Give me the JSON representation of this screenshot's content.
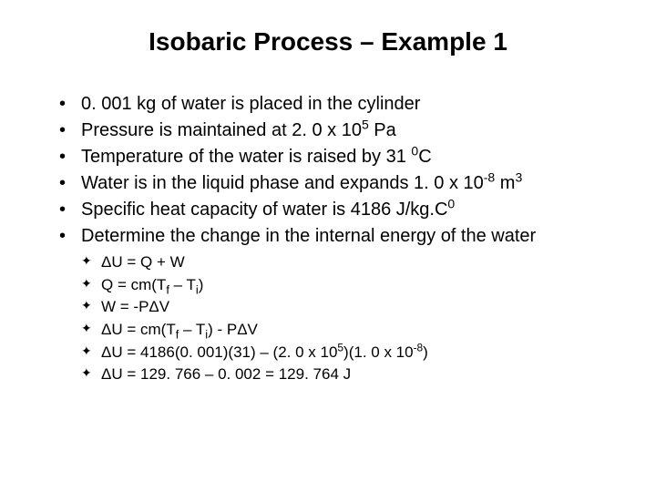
{
  "title": "Isobaric Process – Example 1",
  "bullets": [
    {
      "html": "0. 001 kg of water is placed in the cylinder"
    },
    {
      "html": "Pressure is maintained at 2. 0 x 10<sup>5</sup> Pa"
    },
    {
      "html": "Temperature of the water is raised by 31 <sup>0</sup>C"
    },
    {
      "html": "Water is in the liquid phase and expands 1. 0 x 10<sup>-8</sup> m<sup>3</sup>"
    },
    {
      "html": "Specific heat capacity of water is 4186 J/kg.C<sup>0</sup>"
    },
    {
      "html": "Determine the change in the internal energy of the water"
    }
  ],
  "subbullets": [
    {
      "html": "ΔU = Q + W"
    },
    {
      "html": "Q = cm(T<sub>f</sub> – T<sub>i</sub>)"
    },
    {
      "html": "W = -PΔV"
    },
    {
      "html": "ΔU = cm(T<sub>f</sub> – T<sub>i</sub>) - PΔV"
    },
    {
      "html": "ΔU = 4186(0. 001)(31) – (2. 0 x 10<sup>5</sup>)(1. 0 x 10<sup>-8</sup>)"
    },
    {
      "html": "ΔU = 129. 766 – 0. 002 = 129. 764 J"
    }
  ],
  "colors": {
    "background": "#ffffff",
    "text": "#000000"
  },
  "typography": {
    "title_fontsize": 28,
    "bullet_fontsize": 20,
    "sub_fontsize": 17,
    "font_family": "Arial"
  }
}
